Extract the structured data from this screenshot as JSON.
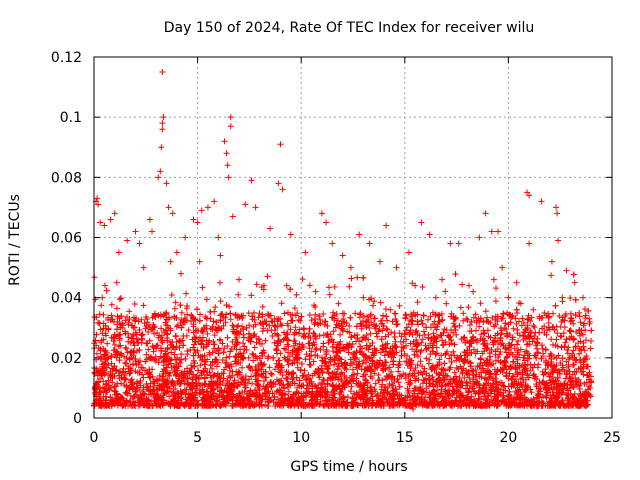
{
  "chart_data": {
    "type": "scatter",
    "title": "Day 150 of 2024, Rate Of TEC Index for receiver wilu",
    "xlabel": "GPS time / hours",
    "ylabel": "ROTI / TECUs",
    "xlim": [
      0,
      25
    ],
    "ylim": [
      0,
      0.12
    ],
    "x_ticks": [
      0,
      5,
      10,
      15,
      20,
      25
    ],
    "x_tick_labels": [
      "0",
      "5",
      "10",
      "15",
      "20",
      "25"
    ],
    "y_ticks": [
      0,
      0.02,
      0.04,
      0.06,
      0.08,
      0.1,
      0.12
    ],
    "y_tick_labels": [
      "0",
      "0.02",
      "0.04",
      "0.06",
      "0.08",
      "0.1",
      "0.12"
    ],
    "grid": true,
    "marker": "+",
    "color": "#ff0000",
    "series": [
      {
        "name": "ROTI",
        "points": [
          [
            0.1,
            0.072
          ],
          [
            0.15,
            0.073
          ],
          [
            0.2,
            0.071
          ],
          [
            0.3,
            0.065
          ],
          [
            0.5,
            0.064
          ],
          [
            0.8,
            0.066
          ],
          [
            1.0,
            0.068
          ],
          [
            1.2,
            0.055
          ],
          [
            1.6,
            0.059
          ],
          [
            2.0,
            0.062
          ],
          [
            2.2,
            0.058
          ],
          [
            2.7,
            0.066
          ],
          [
            2.8,
            0.062
          ],
          [
            3.1,
            0.08
          ],
          [
            3.2,
            0.082
          ],
          [
            3.25,
            0.09
          ],
          [
            3.3,
            0.096
          ],
          [
            3.3,
            0.098
          ],
          [
            3.35,
            0.1
          ],
          [
            3.3,
            0.115
          ],
          [
            3.5,
            0.078
          ],
          [
            3.6,
            0.07
          ],
          [
            3.8,
            0.068
          ],
          [
            4.0,
            0.055
          ],
          [
            4.4,
            0.06
          ],
          [
            4.8,
            0.066
          ],
          [
            5.0,
            0.065
          ],
          [
            5.2,
            0.069
          ],
          [
            5.5,
            0.07
          ],
          [
            5.8,
            0.072
          ],
          [
            6.0,
            0.06
          ],
          [
            6.3,
            0.092
          ],
          [
            6.4,
            0.088
          ],
          [
            6.45,
            0.084
          ],
          [
            6.5,
            0.08
          ],
          [
            6.6,
            0.1
          ],
          [
            6.6,
            0.097
          ],
          [
            6.7,
            0.067
          ],
          [
            7.3,
            0.071
          ],
          [
            7.6,
            0.079
          ],
          [
            7.8,
            0.07
          ],
          [
            8.5,
            0.063
          ],
          [
            8.9,
            0.078
          ],
          [
            9.0,
            0.091
          ],
          [
            9.1,
            0.076
          ],
          [
            9.5,
            0.061
          ],
          [
            10.2,
            0.055
          ],
          [
            11.0,
            0.068
          ],
          [
            11.2,
            0.065
          ],
          [
            11.5,
            0.058
          ],
          [
            12.0,
            0.054
          ],
          [
            12.4,
            0.05
          ],
          [
            12.8,
            0.061
          ],
          [
            13.3,
            0.058
          ],
          [
            13.8,
            0.052
          ],
          [
            14.1,
            0.064
          ],
          [
            14.6,
            0.05
          ],
          [
            15.2,
            0.055
          ],
          [
            15.8,
            0.065
          ],
          [
            16.2,
            0.061
          ],
          [
            16.8,
            0.046
          ],
          [
            17.2,
            0.058
          ],
          [
            17.6,
            0.058
          ],
          [
            18.1,
            0.044
          ],
          [
            18.6,
            0.06
          ],
          [
            18.9,
            0.068
          ],
          [
            19.2,
            0.062
          ],
          [
            19.5,
            0.062
          ],
          [
            19.7,
            0.05
          ],
          [
            20.0,
            0.04
          ],
          [
            20.4,
            0.045
          ],
          [
            20.6,
            0.038
          ],
          [
            20.9,
            0.075
          ],
          [
            21.0,
            0.074
          ],
          [
            21.0,
            0.058
          ],
          [
            21.6,
            0.072
          ],
          [
            22.1,
            0.052
          ],
          [
            22.3,
            0.07
          ],
          [
            22.35,
            0.068
          ],
          [
            22.4,
            0.059
          ],
          [
            22.8,
            0.049
          ],
          [
            23.2,
            0.045
          ],
          [
            23.6,
            0.04
          ],
          [
            23.9,
            0.033
          ],
          [
            1.1,
            0.045
          ],
          [
            2.4,
            0.05
          ],
          [
            4.2,
            0.048
          ],
          [
            5.1,
            0.052
          ],
          [
            7.0,
            0.046
          ],
          [
            8.2,
            0.044
          ],
          [
            10.7,
            0.042
          ],
          [
            13.0,
            0.04
          ],
          [
            15.5,
            0.044
          ],
          [
            17.0,
            0.038
          ],
          [
            19.3,
            0.046
          ],
          [
            21.2,
            0.036
          ],
          [
            22.6,
            0.04
          ],
          [
            0.4,
            0.04
          ],
          [
            3.7,
            0.052
          ],
          [
            6.1,
            0.054
          ],
          [
            9.3,
            0.044
          ],
          [
            11.8,
            0.038
          ],
          [
            14.3,
            0.036
          ],
          [
            16.5,
            0.04
          ],
          [
            18.3,
            0.042
          ],
          [
            20.2,
            0.034
          ],
          [
            23.0,
            0.032
          ],
          [
            0.05,
            0.01
          ],
          [
            23.95,
            0.01
          ],
          [
            12.2,
            0.004
          ],
          [
            15.4,
            0.003
          ],
          [
            10.1,
            0.006
          ],
          [
            6.4,
            0.007
          ],
          [
            19.9,
            0.005
          ]
        ]
      }
    ],
    "dense_band": {
      "note": "very dense region of red + markers spanning the whole day",
      "x_range": [
        0,
        24
      ],
      "y_range": [
        0.004,
        0.035
      ],
      "count": 5200
    }
  }
}
